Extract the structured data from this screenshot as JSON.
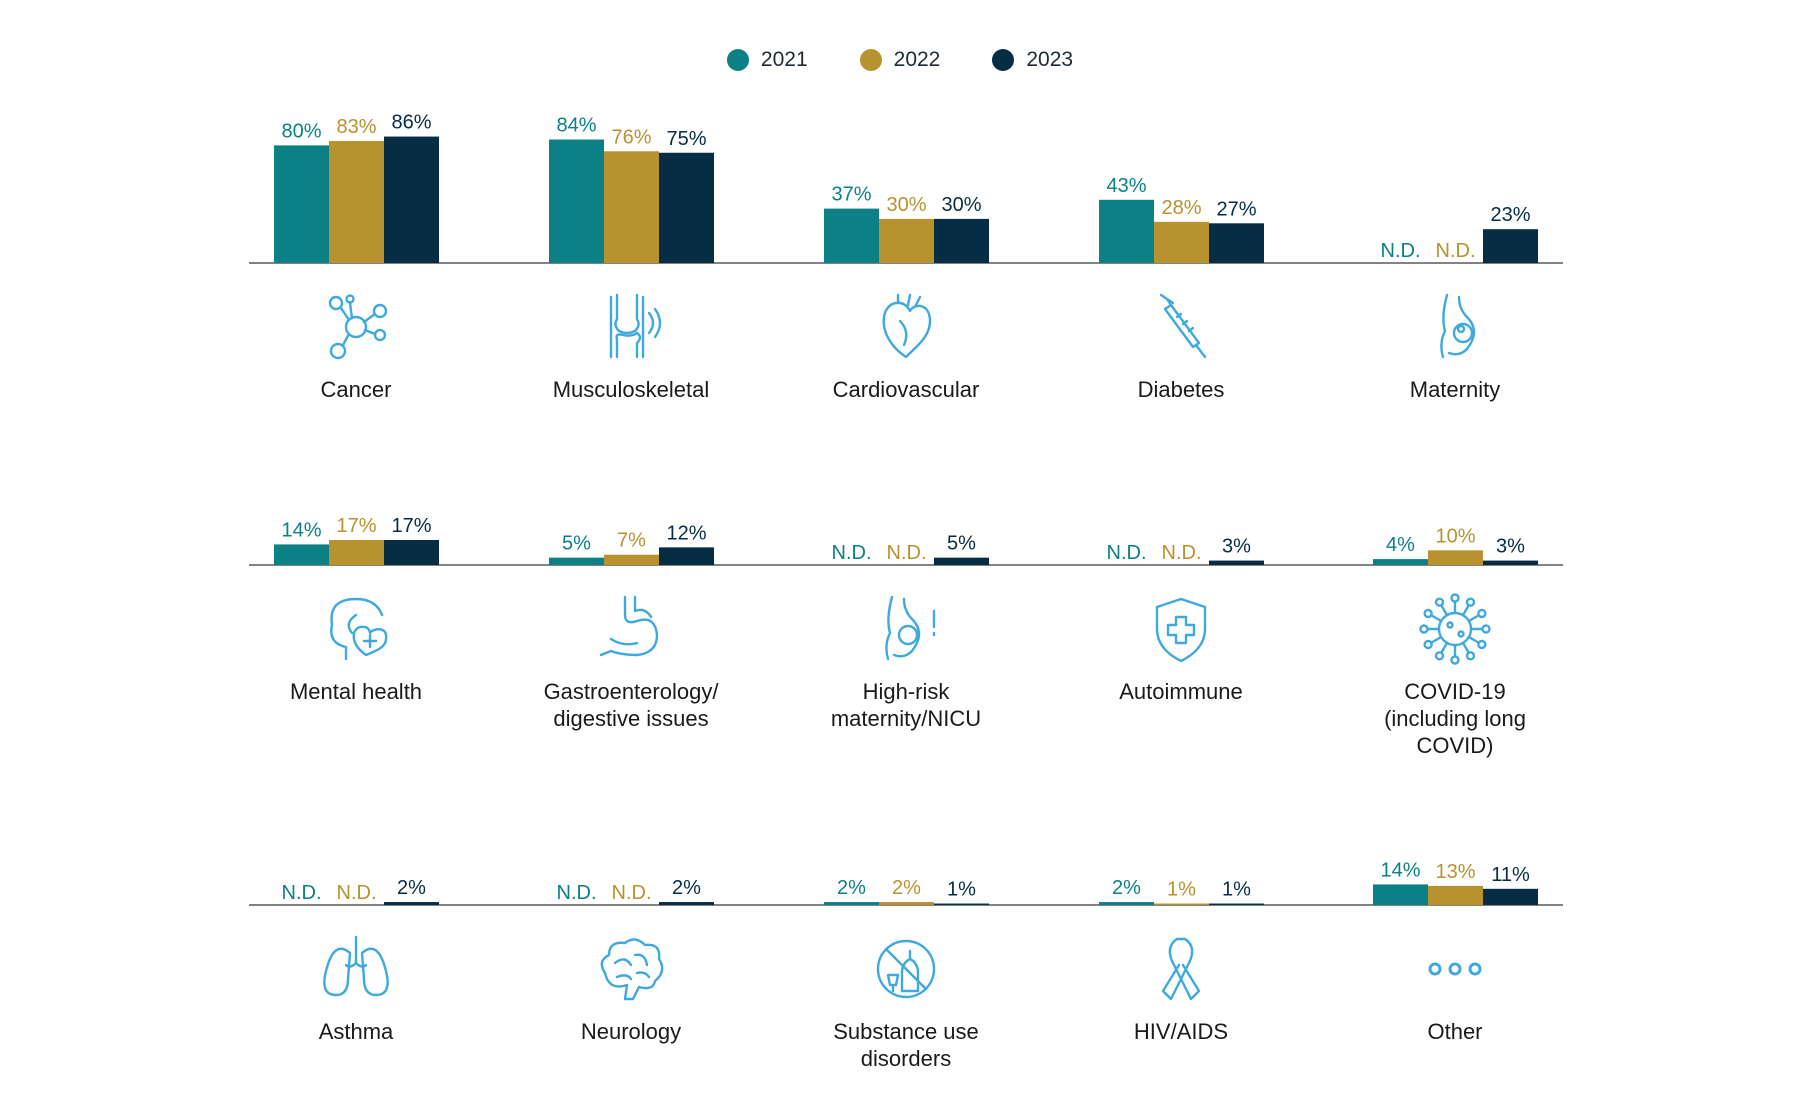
{
  "chart_data": {
    "type": "bar",
    "series_names": [
      "2021",
      "2022",
      "2023"
    ],
    "colors": [
      "#0b8085",
      "#b8922f",
      "#062d44"
    ],
    "icon_color": "#3fa9dd",
    "missing_label": "N.D.",
    "value_suffix": "%",
    "ylim": [
      0,
      90
    ],
    "legend_position": "top-center",
    "categories": [
      {
        "name": "Cancer",
        "label_lines": [
          "Cancer"
        ],
        "icon": "molecule-icon",
        "values": [
          80,
          83,
          86
        ]
      },
      {
        "name": "Musculoskeletal",
        "label_lines": [
          "Musculoskeletal"
        ],
        "icon": "knee-joint-icon",
        "values": [
          84,
          76,
          75
        ]
      },
      {
        "name": "Cardiovascular",
        "label_lines": [
          "Cardiovascular"
        ],
        "icon": "heart-icon",
        "values": [
          37,
          30,
          30
        ]
      },
      {
        "name": "Diabetes",
        "label_lines": [
          "Diabetes"
        ],
        "icon": "syringe-icon",
        "values": [
          43,
          28,
          27
        ]
      },
      {
        "name": "Maternity",
        "label_lines": [
          "Maternity"
        ],
        "icon": "pregnancy-icon",
        "values": [
          null,
          null,
          23
        ]
      },
      {
        "name": "Mental health",
        "label_lines": [
          "Mental health"
        ],
        "icon": "head-heart-icon",
        "values": [
          14,
          17,
          17
        ]
      },
      {
        "name": "Gastroenterology/ digestive issues",
        "label_lines": [
          "Gastroenterology/",
          "digestive issues"
        ],
        "icon": "stomach-icon",
        "values": [
          5,
          7,
          12
        ]
      },
      {
        "name": "High-risk maternity/NICU",
        "label_lines": [
          "High-risk",
          "maternity/NICU"
        ],
        "icon": "pregnancy-alert-icon",
        "values": [
          null,
          null,
          5
        ]
      },
      {
        "name": "Autoimmune",
        "label_lines": [
          "Autoimmune"
        ],
        "icon": "shield-cross-icon",
        "values": [
          null,
          null,
          3
        ]
      },
      {
        "name": "COVID-19 (including long COVID)",
        "label_lines": [
          "COVID-19",
          "(including long",
          "COVID)"
        ],
        "icon": "virus-icon",
        "values": [
          4,
          10,
          3
        ]
      },
      {
        "name": "Asthma",
        "label_lines": [
          "Asthma"
        ],
        "icon": "lungs-icon",
        "values": [
          null,
          null,
          2
        ]
      },
      {
        "name": "Neurology",
        "label_lines": [
          "Neurology"
        ],
        "icon": "brain-icon",
        "values": [
          null,
          null,
          2
        ]
      },
      {
        "name": "Substance use disorders",
        "label_lines": [
          "Substance use",
          "disorders"
        ],
        "icon": "no-bottle-icon",
        "values": [
          2,
          2,
          1
        ]
      },
      {
        "name": "HIV/AIDS",
        "label_lines": [
          "HIV/AIDS"
        ],
        "icon": "ribbon-icon",
        "values": [
          2,
          1,
          1
        ]
      },
      {
        "name": "Other",
        "label_lines": [
          "Other"
        ],
        "icon": "ellipsis-icon",
        "values": [
          14,
          13,
          11
        ]
      }
    ]
  }
}
